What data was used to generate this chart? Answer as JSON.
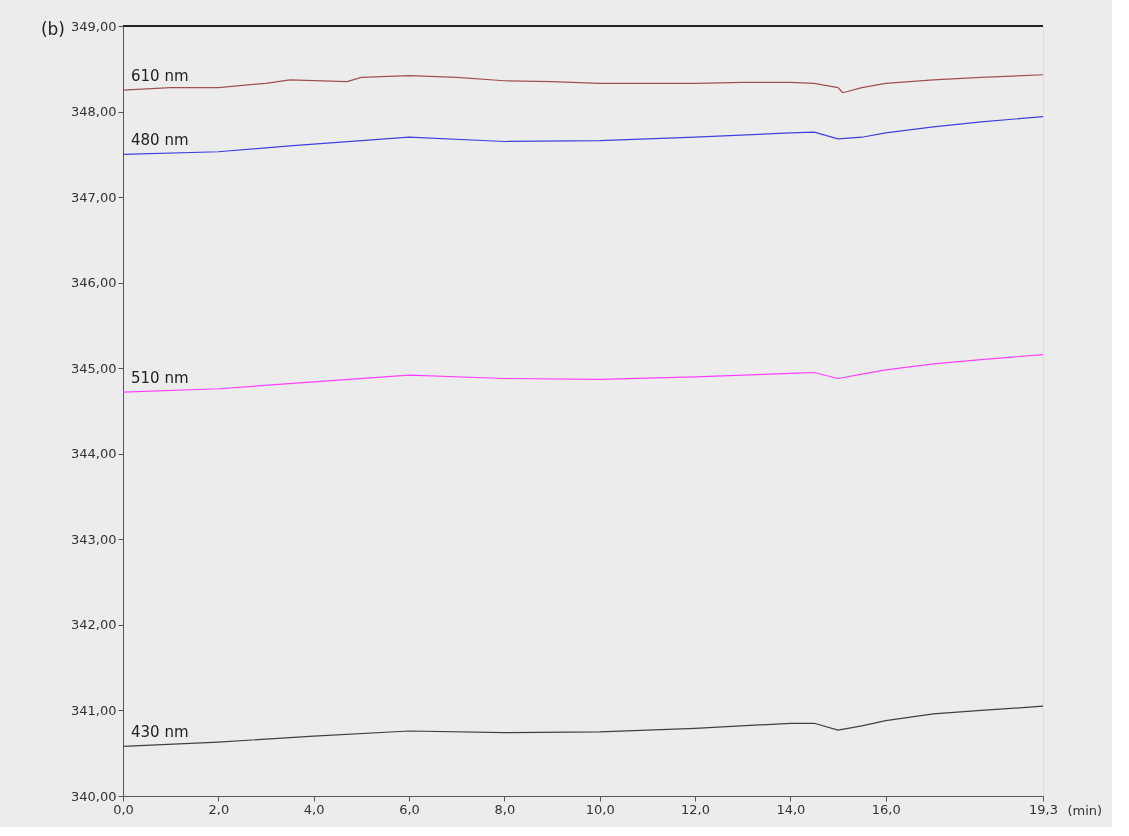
{
  "chart_data": {
    "type": "line",
    "xlabel": "(min)",
    "annotations": [
      "(b)"
    ],
    "xlim": [
      0,
      19.3
    ],
    "ylim": [
      340,
      349
    ],
    "xticks": [
      {
        "value": 0,
        "label": "0,0"
      },
      {
        "value": 2,
        "label": "2,0"
      },
      {
        "value": 4,
        "label": "4,0"
      },
      {
        "value": 6,
        "label": "6,0"
      },
      {
        "value": 8,
        "label": "8,0"
      },
      {
        "value": 10,
        "label": "10,0"
      },
      {
        "value": 12,
        "label": "12,0"
      },
      {
        "value": 14,
        "label": "14,0"
      },
      {
        "value": 16,
        "label": "16,0"
      },
      {
        "value": 19.3,
        "label": "19,3"
      }
    ],
    "yticks": [
      {
        "value": 340,
        "label": "340,00"
      },
      {
        "value": 341,
        "label": "341,00"
      },
      {
        "value": 342,
        "label": "342,00"
      },
      {
        "value": 343,
        "label": "343,00"
      },
      {
        "value": 344,
        "label": "344,00"
      },
      {
        "value": 345,
        "label": "345,00"
      },
      {
        "value": 346,
        "label": "346,00"
      },
      {
        "value": 347,
        "label": "347,00"
      },
      {
        "value": 348,
        "label": "348,00"
      },
      {
        "value": 349,
        "label": "349,00"
      }
    ],
    "grid": false,
    "legend": false,
    "marker": "none",
    "line_style": "solid",
    "series": [
      {
        "name": "610 nm",
        "color": "#a05050",
        "x": [
          0,
          1,
          2,
          3,
          3.5,
          4.7,
          5,
          6,
          7,
          8,
          9,
          10,
          11,
          12,
          13,
          14,
          14.5,
          15,
          15.1,
          15.5,
          16,
          17,
          18,
          19.3
        ],
        "values": [
          348.25,
          348.28,
          348.28,
          348.33,
          348.37,
          348.35,
          348.4,
          348.42,
          348.4,
          348.36,
          348.35,
          348.33,
          348.33,
          348.33,
          348.34,
          348.34,
          348.33,
          348.28,
          348.22,
          348.28,
          348.33,
          348.37,
          348.4,
          348.43
        ]
      },
      {
        "name": "480 nm",
        "color": "#4040e0",
        "x": [
          0,
          2,
          3.5,
          4,
          6,
          8,
          10,
          12,
          14,
          14.5,
          15,
          15.5,
          16,
          17,
          18,
          19.3
        ],
        "values": [
          347.5,
          347.53,
          347.6,
          347.62,
          347.7,
          347.65,
          347.66,
          347.7,
          347.75,
          347.76,
          347.68,
          347.7,
          347.75,
          347.82,
          347.88,
          347.94
        ]
      },
      {
        "name": "510 nm",
        "color": "#ff40ff",
        "x": [
          0,
          2,
          4,
          6,
          8,
          10,
          12,
          14,
          14.5,
          15,
          15.5,
          16,
          17,
          18,
          19.3
        ],
        "values": [
          344.72,
          344.76,
          344.84,
          344.92,
          344.88,
          344.87,
          344.9,
          344.94,
          344.95,
          344.88,
          344.93,
          344.98,
          345.05,
          345.1,
          345.16
        ]
      },
      {
        "name": "430 nm",
        "color": "#404040",
        "x": [
          0,
          2,
          4,
          6,
          8,
          10,
          12,
          14,
          14.5,
          15,
          15.5,
          16,
          17,
          18,
          19.3
        ],
        "values": [
          340.58,
          340.63,
          340.7,
          340.76,
          340.74,
          340.75,
          340.79,
          340.85,
          340.85,
          340.77,
          340.82,
          340.88,
          340.96,
          341.0,
          341.05
        ]
      }
    ]
  }
}
